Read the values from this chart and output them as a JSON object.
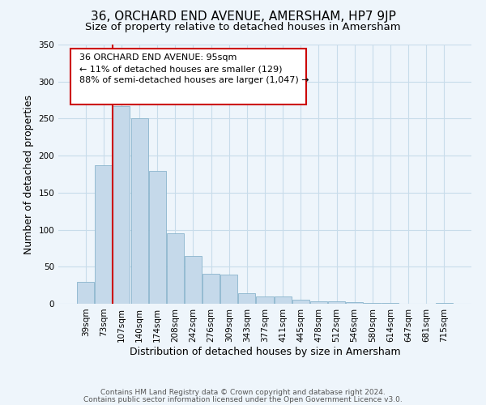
{
  "title": "36, ORCHARD END AVENUE, AMERSHAM, HP7 9JP",
  "subtitle": "Size of property relative to detached houses in Amersham",
  "xlabel": "Distribution of detached houses by size in Amersham",
  "ylabel": "Number of detached properties",
  "bar_labels": [
    "39sqm",
    "73sqm",
    "107sqm",
    "140sqm",
    "174sqm",
    "208sqm",
    "242sqm",
    "276sqm",
    "309sqm",
    "343sqm",
    "377sqm",
    "411sqm",
    "445sqm",
    "478sqm",
    "512sqm",
    "546sqm",
    "580sqm",
    "614sqm",
    "647sqm",
    "681sqm",
    "715sqm"
  ],
  "bar_values": [
    30,
    187,
    267,
    251,
    179,
    95,
    65,
    40,
    39,
    14,
    10,
    10,
    5,
    3,
    3,
    2,
    1,
    1,
    0,
    0,
    1
  ],
  "bar_color": "#c5d9ea",
  "bar_edge_color": "#8ab4cc",
  "grid_color": "#c8dcea",
  "vline_x_index": 2,
  "vline_color": "#cc0000",
  "annotation_box_text": "36 ORCHARD END AVENUE: 95sqm\n← 11% of detached houses are smaller (129)\n88% of semi-detached houses are larger (1,047) →",
  "ylim": [
    0,
    350
  ],
  "yticks": [
    0,
    50,
    100,
    150,
    200,
    250,
    300,
    350
  ],
  "footer_line1": "Contains HM Land Registry data © Crown copyright and database right 2024.",
  "footer_line2": "Contains public sector information licensed under the Open Government Licence v3.0.",
  "background_color": "#eef5fb",
  "plot_background_color": "#eef5fb",
  "title_fontsize": 11,
  "subtitle_fontsize": 9.5,
  "axis_label_fontsize": 9,
  "tick_fontsize": 7.5,
  "footer_fontsize": 6.5
}
